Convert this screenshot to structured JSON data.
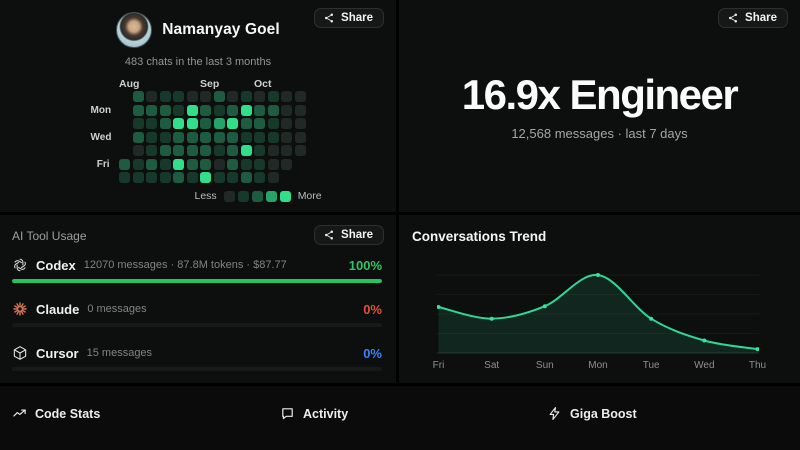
{
  "profile": {
    "name": "Namanyay Goel",
    "subtitle": "483 chats in the last 3 months",
    "share_label": "Share",
    "heatmap": {
      "month_labels": [
        {
          "label": "Aug",
          "col": 0
        },
        {
          "label": "Sep",
          "col": 6
        },
        {
          "label": "Oct",
          "col": 10
        }
      ],
      "day_labels": [
        "",
        "Mon",
        "",
        "Wed",
        "",
        "Fri",
        ""
      ],
      "level_colors": [
        "#212927",
        "#17392c",
        "#1d5c41",
        "#26a368",
        "#31df8a"
      ],
      "grid": [
        [
          null,
          2,
          0,
          1,
          1,
          0,
          0,
          2,
          0,
          1,
          0,
          1,
          0,
          0
        ],
        [
          null,
          2,
          2,
          2,
          1,
          4,
          2,
          1,
          2,
          4,
          2,
          2,
          0,
          0
        ],
        [
          null,
          1,
          1,
          2,
          4,
          4,
          2,
          3,
          4,
          2,
          2,
          1,
          0,
          0
        ],
        [
          null,
          2,
          1,
          1,
          2,
          2,
          2,
          2,
          2,
          1,
          1,
          1,
          0,
          0
        ],
        [
          null,
          0,
          1,
          2,
          2,
          2,
          2,
          1,
          2,
          4,
          1,
          0,
          0,
          0
        ],
        [
          2,
          1,
          2,
          1,
          4,
          2,
          2,
          0,
          2,
          1,
          1,
          0,
          0,
          null
        ],
        [
          1,
          1,
          1,
          1,
          2,
          1,
          4,
          1,
          1,
          2,
          1,
          0,
          null,
          null
        ]
      ],
      "legend": {
        "less": "Less",
        "more": "More",
        "levels": [
          0,
          1,
          2,
          3,
          4
        ]
      }
    }
  },
  "engineer": {
    "title": "16.9x Engineer",
    "subtitle": "12,568 messages · last 7 days",
    "share_label": "Share"
  },
  "tools": {
    "title": "AI Tool Usage",
    "share_label": "Share",
    "items": [
      {
        "name": "Codex",
        "icon": "openai-icon",
        "details": "12070 messages · 87.8M tokens · $87.77",
        "percent": "100%",
        "percent_color": "#2fc363",
        "bar_percent": 100,
        "bar_color": "#22c55e"
      },
      {
        "name": "Claude",
        "icon": "claude-icon",
        "details": "0 messages",
        "percent": "0%",
        "percent_color": "#e05238",
        "bar_percent": 0,
        "bar_color": "#e05238"
      },
      {
        "name": "Cursor",
        "icon": "cursor-icon",
        "details": "15 messages",
        "percent": "0%",
        "percent_color": "#3b82f6",
        "bar_percent": 0,
        "bar_color": "#3b82f6"
      }
    ]
  },
  "trend": {
    "title": "Conversations Trend"
  },
  "chart_data": {
    "type": "area",
    "title": "Conversations Trend",
    "x": [
      "Fri",
      "Sat",
      "Sun",
      "Mon",
      "Tue",
      "Wed",
      "Thu"
    ],
    "values": [
      59,
      44,
      60,
      100,
      44,
      16,
      5
    ],
    "xlabel": "",
    "ylabel": "",
    "ylim": [
      0,
      110
    ],
    "grid": true,
    "legend_position": "none",
    "line_color": "#2fd795",
    "fill_color": "rgba(44,185,126,0.14)",
    "point_color": "#3ae2a0"
  },
  "footer": {
    "items": [
      {
        "label": "Code Stats",
        "icon": "trend-up-icon"
      },
      {
        "label": "Activity",
        "icon": "chat-icon"
      },
      {
        "label": "Giga Boost",
        "icon": "bolt-icon"
      }
    ]
  }
}
